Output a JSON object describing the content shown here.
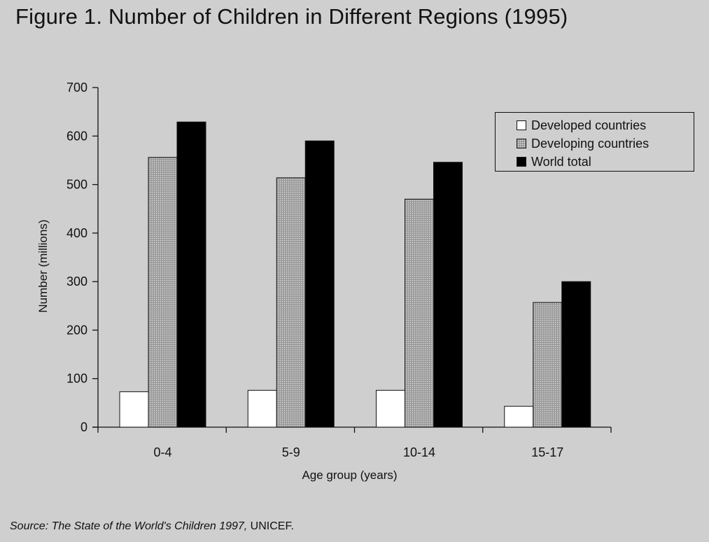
{
  "figure": {
    "title": "Figure 1. Number of Children in Different Regions (1995)",
    "source_prefix": "Source: The State of the World's Children 1997,",
    "source_suffix": " UNICEF."
  },
  "chart_data": {
    "type": "bar",
    "title": "Figure 1. Number of Children in Different Regions (1995)",
    "xlabel": "Age group (years)",
    "ylabel": "Number (millions)",
    "ylim": [
      0,
      700
    ],
    "yticks": [
      0,
      100,
      200,
      300,
      400,
      500,
      600,
      700
    ],
    "categories": [
      "0-4",
      "5-9",
      "10-14",
      "15-17"
    ],
    "series": [
      {
        "name": "Developed countries",
        "values": [
          73,
          76,
          76,
          43
        ],
        "color": "#ffffff",
        "pattern": "none"
      },
      {
        "name": "Developing countries",
        "values": [
          556,
          514,
          470,
          257
        ],
        "color": "#a0a0a0",
        "pattern": "stipple"
      },
      {
        "name": "World total",
        "values": [
          629,
          590,
          546,
          300
        ],
        "color": "#000000",
        "pattern": "none"
      }
    ],
    "legend_position": "top-right",
    "grid": false
  }
}
